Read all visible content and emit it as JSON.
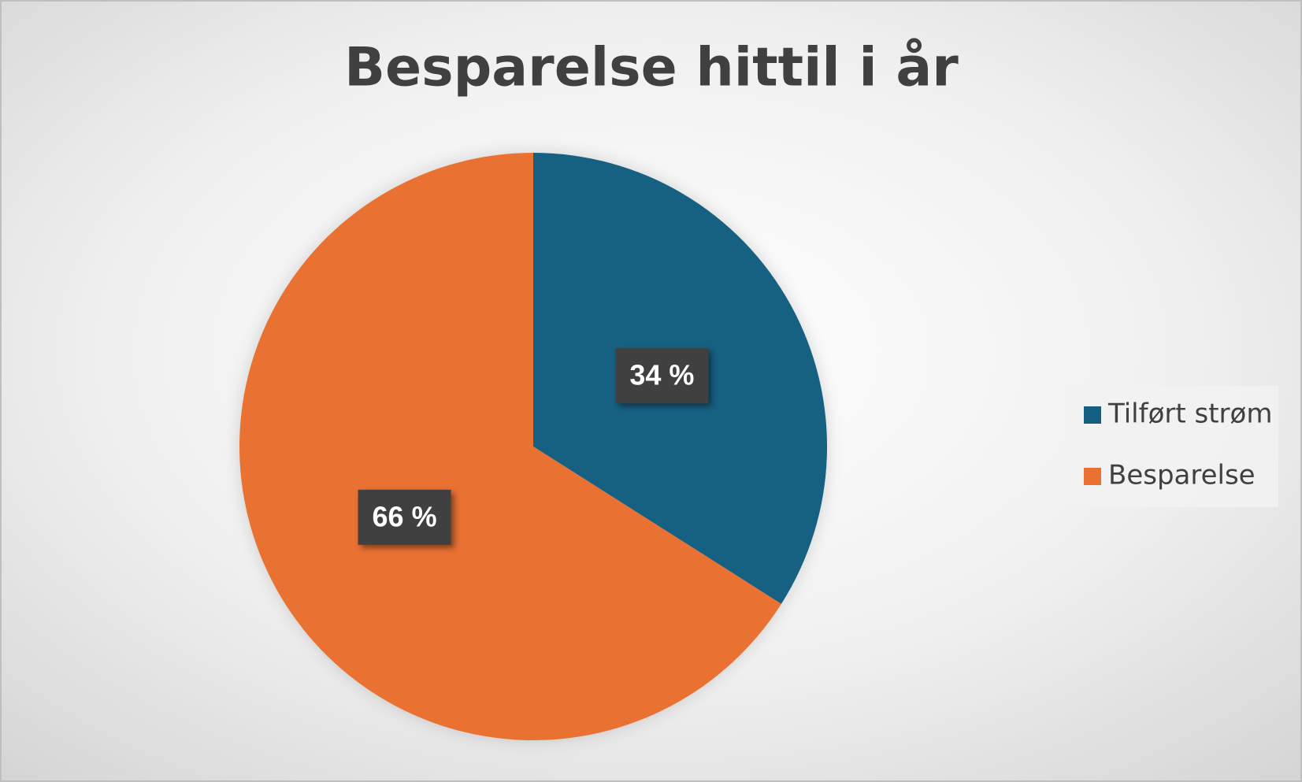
{
  "chart_data": {
    "type": "pie",
    "title": "Besparelse hittil i år",
    "categories": [
      "Tilført strøm",
      "Besparelse"
    ],
    "values": [
      34,
      66
    ],
    "value_labels": [
      "34 %",
      "66 %"
    ],
    "colors": [
      "#156082",
      "#e97132"
    ],
    "legend": "right"
  }
}
